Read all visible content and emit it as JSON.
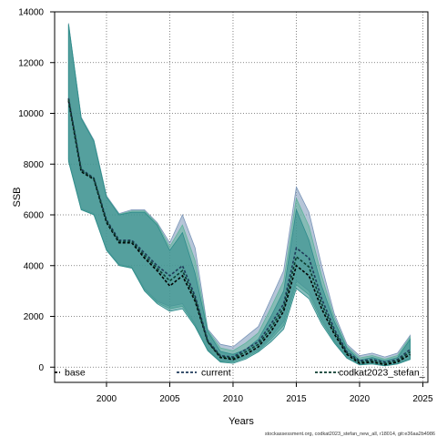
{
  "chart_data": {
    "type": "line",
    "title": "",
    "xlabel": "Years",
    "ylabel": "SSB",
    "xlim": [
      1995.9,
      2025.4
    ],
    "ylim": [
      -600,
      14000
    ],
    "x_ticks": [
      2000,
      2005,
      2010,
      2015,
      2020,
      2025
    ],
    "y_ticks": [
      0,
      2000,
      4000,
      6000,
      8000,
      10000,
      12000,
      14000
    ],
    "grid": true,
    "legend_placement": "bottom",
    "x": [
      1997,
      1998,
      1999,
      2000,
      2001,
      2002,
      2003,
      2004,
      2005,
      2006,
      2007,
      2008,
      2009,
      2010,
      2011,
      2012,
      2013,
      2014,
      2015,
      2016,
      2017,
      2018,
      2019,
      2020,
      2021,
      2022,
      2023,
      2024
    ],
    "series": [
      {
        "name": "base",
        "color": "#000000",
        "dash": "3,2",
        "band_color": "#2e8b8b",
        "values": [
          10500,
          7700,
          7400,
          5700,
          4900,
          4900,
          4300,
          3800,
          3200,
          3600,
          2600,
          1000,
          380,
          300,
          500,
          800,
          1400,
          2200,
          4000,
          3600,
          2300,
          1300,
          500,
          150,
          200,
          100,
          200,
          500
        ],
        "lower": [
          8100,
          6200,
          6000,
          4600,
          4000,
          3900,
          3000,
          2500,
          2200,
          2300,
          1600,
          650,
          200,
          150,
          320,
          600,
          1000,
          1500,
          3100,
          2700,
          1700,
          950,
          350,
          90,
          120,
          50,
          120,
          300
        ],
        "upper": [
          13500,
          9800,
          8900,
          6700,
          6000,
          6100,
          6100,
          5600,
          4600,
          5300,
          3700,
          1400,
          620,
          500,
          700,
          1100,
          2000,
          3000,
          6200,
          5000,
          3200,
          1800,
          750,
          280,
          380,
          250,
          380,
          1100
        ]
      },
      {
        "name": "current",
        "color": "#1f3a5a",
        "dash": "3,2",
        "band_color": "#7a95b8",
        "values": [
          10600,
          7800,
          7450,
          5800,
          5000,
          5000,
          4500,
          4000,
          3600,
          4000,
          2800,
          1050,
          450,
          400,
          700,
          1000,
          1700,
          2500,
          4700,
          4300,
          2700,
          1500,
          600,
          250,
          300,
          200,
          300,
          700
        ],
        "lower": [
          8200,
          6250,
          6050,
          4650,
          4050,
          3950,
          3100,
          2600,
          2400,
          2500,
          1700,
          700,
          250,
          250,
          450,
          700,
          1200,
          1800,
          3400,
          3000,
          1900,
          1050,
          400,
          130,
          180,
          100,
          150,
          350
        ],
        "upper": [
          13550,
          9850,
          8950,
          6750,
          6050,
          6200,
          6200,
          5700,
          4900,
          6000,
          4700,
          1500,
          900,
          800,
          1200,
          1600,
          2700,
          3800,
          7100,
          6100,
          4000,
          2100,
          900,
          450,
          550,
          400,
          550,
          1250
        ]
      },
      {
        "name": "codkat2023_stefan_",
        "color": "#0b3d2e",
        "dash": "3,2",
        "band_color": "#5fb39a",
        "values": [
          10550,
          7750,
          7420,
          5750,
          4950,
          4950,
          4400,
          3900,
          3400,
          3800,
          2700,
          1000,
          420,
          350,
          600,
          900,
          1550,
          2350,
          4350,
          3950,
          2500,
          1400,
          550,
          200,
          250,
          150,
          250,
          600
        ],
        "lower": [
          8150,
          6220,
          6020,
          4620,
          4020,
          3920,
          3050,
          2550,
          2300,
          2400,
          1650,
          670,
          220,
          200,
          380,
          650,
          1100,
          1650,
          3250,
          2850,
          1800,
          1000,
          370,
          110,
          150,
          70,
          130,
          320
        ],
        "upper": [
          13520,
          9820,
          8920,
          6720,
          6020,
          6150,
          6150,
          5650,
          4750,
          5600,
          4200,
          1450,
          760,
          650,
          950,
          1350,
          2350,
          3400,
          6650,
          5550,
          3600,
          1950,
          820,
          360,
          460,
          320,
          460,
          1180
        ]
      }
    ]
  },
  "legend": [
    {
      "label": "base",
      "color": "#000000"
    },
    {
      "label": "current",
      "color": "#1f3a5a"
    },
    {
      "label": "codkat2023_stefan_",
      "color": "#0b3d2e"
    }
  ],
  "footer_text": "stockassessment.org, codkat2023_stefan_new_all, r18014, git:e36aa2b4986"
}
